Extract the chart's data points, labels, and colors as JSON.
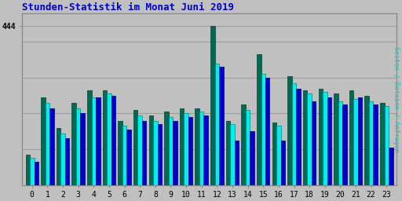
{
  "title": "Stunden-Statistik im Monat Juni 2019",
  "ylabel_right": "Seiten / Dateien / Anfragen",
  "hours": [
    0,
    1,
    2,
    3,
    4,
    5,
    6,
    7,
    8,
    9,
    10,
    11,
    12,
    13,
    14,
    15,
    16,
    17,
    18,
    19,
    20,
    21,
    22,
    23
  ],
  "seiten": [
    75,
    230,
    145,
    215,
    245,
    255,
    165,
    195,
    180,
    190,
    200,
    205,
    340,
    170,
    210,
    310,
    165,
    285,
    255,
    260,
    235,
    240,
    235,
    220
  ],
  "dateien": [
    85,
    245,
    160,
    230,
    265,
    265,
    180,
    210,
    195,
    205,
    215,
    215,
    444,
    180,
    225,
    365,
    175,
    305,
    265,
    270,
    255,
    265,
    250,
    230
  ],
  "anfragen": [
    65,
    215,
    130,
    200,
    245,
    250,
    155,
    180,
    170,
    180,
    190,
    195,
    330,
    125,
    150,
    300,
    125,
    270,
    235,
    245,
    225,
    245,
    225,
    105
  ],
  "color_seiten": "#00EEEE",
  "color_dateien": "#006B54",
  "color_anfragen": "#0000CD",
  "bg_color": "#C0C0C0",
  "plot_bg": "#C0C0C0",
  "title_color": "#0000CC",
  "ylabel_color": "#00CED1",
  "grid_color": "#999999",
  "ylim": [
    0,
    480
  ],
  "ytick_val": 444,
  "ytick_label": "444",
  "bar_width": 0.28,
  "figsize": [
    5.12,
    2.56
  ],
  "dpi": 100
}
